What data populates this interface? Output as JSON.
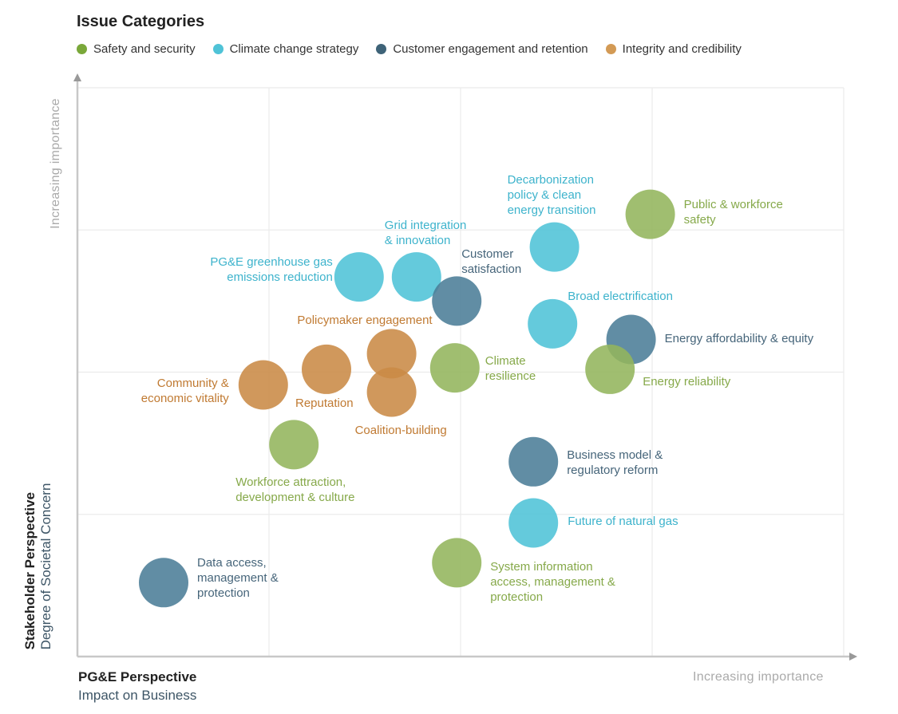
{
  "chart_data": {
    "type": "scatter",
    "legend_title": "Issue Categories",
    "legend_position": "top",
    "grid": true,
    "xlim": [
      0,
      4
    ],
    "ylim": [
      0,
      4
    ],
    "x_title": "PG&E Perspective",
    "x_subtitle": "Impact on Business",
    "x_direction_label": "Increasing  importance",
    "y_title": "Stakeholder Perspective",
    "y_subtitle": "Degree of Societal Concern",
    "y_direction_label": "Increasing  importance",
    "categories": [
      {
        "name": "Safety and security",
        "color": "#93b55c",
        "text_color": "#86a94a"
      },
      {
        "name": "Climate change strategy",
        "color": "#4fc3d7",
        "text_color": "#3db3cc"
      },
      {
        "name": "Customer engagement and retention",
        "color": "#4b7d97",
        "text_color": "#46657a"
      },
      {
        "name": "Integrity and credibility",
        "color": "#c98a45",
        "text_color": "#c07a32"
      }
    ],
    "points": [
      {
        "label": "Public & workforce\nsafety",
        "category": 0,
        "x": 2.99,
        "y": 3.11
      },
      {
        "label": "Decarbonization\npolicy & clean\nenergy transition",
        "category": 1,
        "x": 2.49,
        "y": 2.88
      },
      {
        "label": "Grid integration\n& innovation",
        "category": 1,
        "x": 1.77,
        "y": 2.67
      },
      {
        "label": "PG&E greenhouse gas\nemissions reduction",
        "category": 1,
        "x": 1.47,
        "y": 2.67
      },
      {
        "label": "Customer\nsatisfaction",
        "category": 2,
        "x": 1.98,
        "y": 2.5
      },
      {
        "label": "Broad electrification",
        "category": 1,
        "x": 2.48,
        "y": 2.34
      },
      {
        "label": "Energy affordability & equity",
        "category": 2,
        "x": 2.89,
        "y": 2.23
      },
      {
        "label": "Energy reliability",
        "category": 0,
        "x": 2.78,
        "y": 2.02
      },
      {
        "label": "Climate\nresilience",
        "category": 0,
        "x": 1.97,
        "y": 2.03
      },
      {
        "label": "Policymaker engagement",
        "category": 3,
        "x": 1.64,
        "y": 2.13
      },
      {
        "label": "Reputation",
        "category": 3,
        "x": 1.3,
        "y": 2.02
      },
      {
        "label": "Coalition-building",
        "category": 3,
        "x": 1.64,
        "y": 1.86
      },
      {
        "label": "Community &\neconomic vitality",
        "category": 3,
        "x": 0.97,
        "y": 1.91
      },
      {
        "label": "Workforce attraction,\ndevelopment & culture",
        "category": 0,
        "x": 1.13,
        "y": 1.49
      },
      {
        "label": "Business model &\nregulatory reform",
        "category": 2,
        "x": 2.38,
        "y": 1.37
      },
      {
        "label": "Future of natural gas",
        "category": 1,
        "x": 2.38,
        "y": 0.94
      },
      {
        "label": "System information\naccess, management &\nprotection",
        "category": 0,
        "x": 1.98,
        "y": 0.66
      },
      {
        "label": "Data access,\nmanagement &\nprotection",
        "category": 2,
        "x": 0.45,
        "y": 0.52
      }
    ]
  }
}
